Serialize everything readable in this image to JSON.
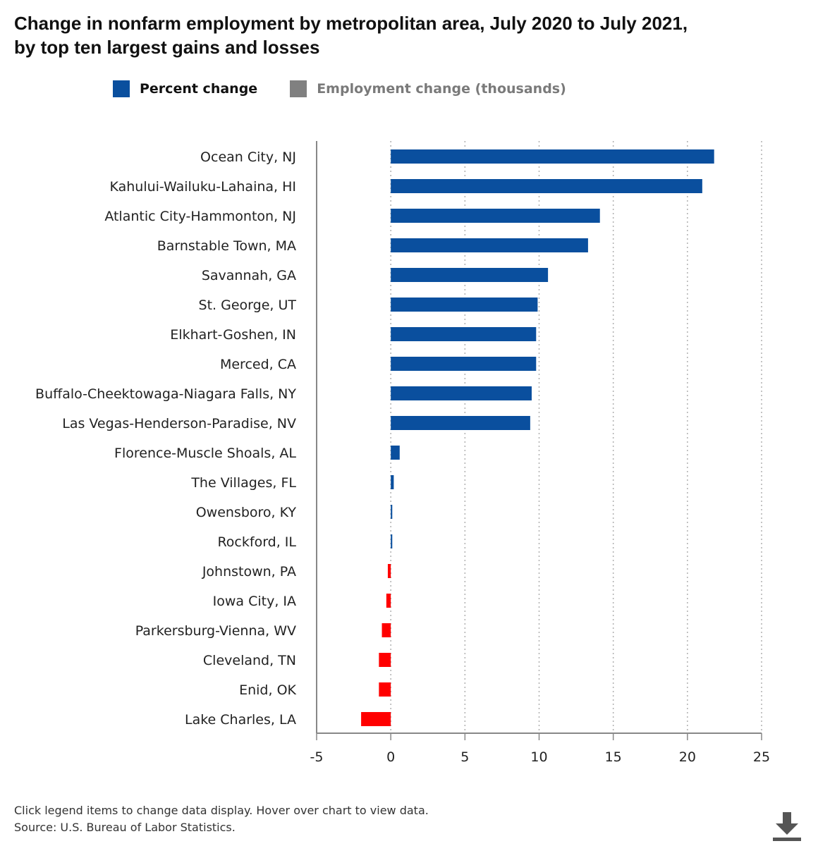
{
  "title_line1": "Change in nonfarm employment by metropolitan area, July 2020 to July 2021,",
  "title_line2": "by top ten largest gains and losses",
  "legend": [
    {
      "label": "Percent change",
      "color": "#0a4f9e",
      "active": true
    },
    {
      "label": "Employment change (thousands)",
      "color": "#808080",
      "active": false
    }
  ],
  "footnote": {
    "line1": "Click legend items to change data display. Hover over chart to view data.",
    "line2": "Source: U.S. Bureau of Labor Statistics."
  },
  "download_icon": "download-icon",
  "colors": {
    "positive": "#0a4f9e",
    "negative": "#ff0000",
    "axis": "#888888",
    "grid": "#b0b0b0"
  },
  "chart_data": {
    "type": "bar",
    "orientation": "horizontal",
    "categories": [
      "Ocean City, NJ",
      "Kahului-Wailuku-Lahaina, HI",
      "Atlantic City-Hammonton, NJ",
      "Barnstable Town, MA",
      "Savannah, GA",
      "St. George, UT",
      "Elkhart-Goshen, IN",
      "Merced, CA",
      "Buffalo-Cheektowaga-Niagara Falls, NY",
      "Las Vegas-Henderson-Paradise, NV",
      "Florence-Muscle Shoals, AL",
      "The Villages, FL",
      "Owensboro, KY",
      "Rockford, IL",
      "Johnstown, PA",
      "Iowa City, IA",
      "Parkersburg-Vienna, WV",
      "Cleveland, TN",
      "Enid, OK",
      "Lake Charles, LA"
    ],
    "series": [
      {
        "name": "Percent change",
        "values": [
          21.8,
          21.0,
          14.1,
          13.3,
          10.6,
          9.9,
          9.8,
          9.8,
          9.5,
          9.4,
          0.6,
          0.2,
          0.1,
          0.1,
          -0.2,
          -0.3,
          -0.6,
          -0.8,
          -0.8,
          -2.0
        ]
      }
    ],
    "xlim": [
      -5,
      25
    ],
    "xticks": [
      "-5",
      "0",
      "5",
      "10",
      "15",
      "20",
      "25"
    ],
    "grid": "vertical dotted",
    "legend_position": "top"
  }
}
